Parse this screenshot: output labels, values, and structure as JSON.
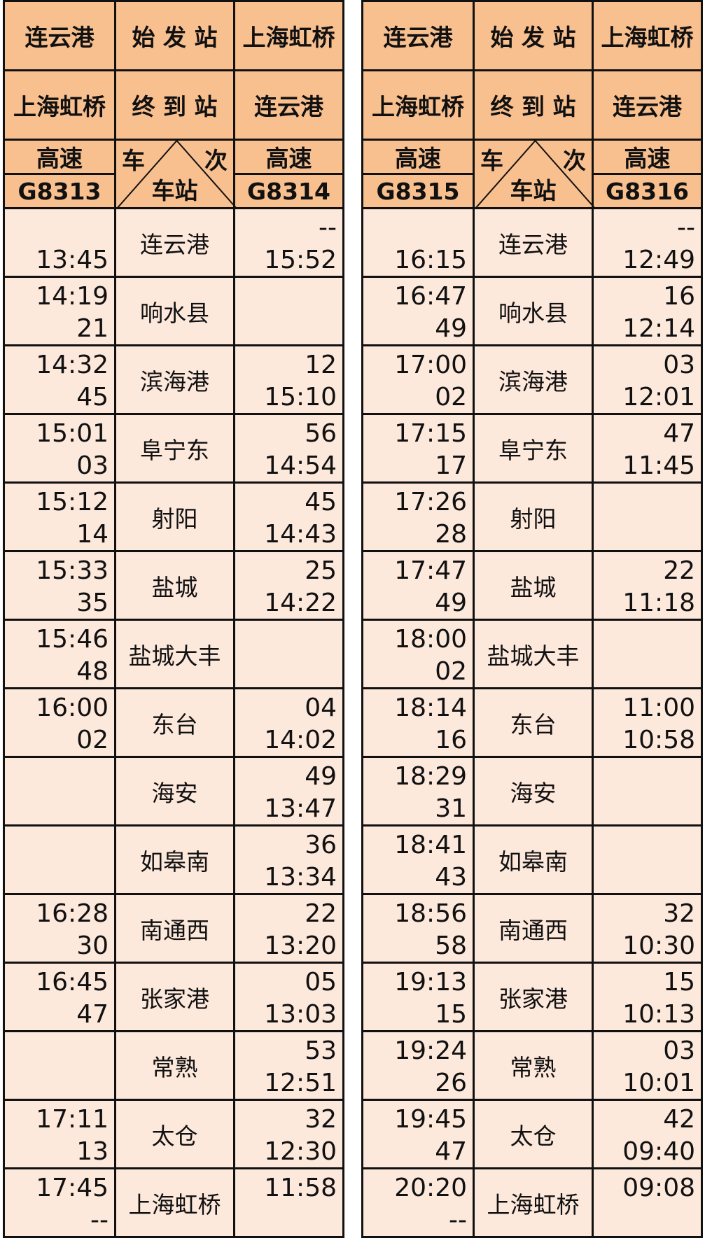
{
  "header": {
    "origin_label": "始 发 站",
    "terminus_label": "终 到 站",
    "diag_train": "车",
    "diag_number": "次",
    "diag_station": "车站"
  },
  "colors": {
    "header_bg": "#F8BF8F",
    "body_bg": "#FDE8DC",
    "border": "#111111"
  },
  "tables": [
    {
      "down": {
        "origin": "连云港",
        "terminus": "上海虹桥",
        "type": "高速",
        "train": "G8313"
      },
      "up": {
        "origin": "上海虹桥",
        "terminus": "连云港",
        "type": "高速",
        "train": "G8314"
      },
      "rows": [
        {
          "station": "连云港",
          "down": [
            "",
            "13:45"
          ],
          "up": [
            "--",
            "15:52"
          ]
        },
        {
          "station": "响水县",
          "down": [
            "14:19",
            "21"
          ],
          "up": [
            "",
            ""
          ]
        },
        {
          "station": "滨海港",
          "down": [
            "14:32",
            "45"
          ],
          "up": [
            "12",
            "15:10"
          ]
        },
        {
          "station": "阜宁东",
          "down": [
            "15:01",
            "03"
          ],
          "up": [
            "56",
            "14:54"
          ]
        },
        {
          "station": "射阳",
          "down": [
            "15:12",
            "14"
          ],
          "up": [
            "45",
            "14:43"
          ]
        },
        {
          "station": "盐城",
          "down": [
            "15:33",
            "35"
          ],
          "up": [
            "25",
            "14:22"
          ]
        },
        {
          "station": "盐城大丰",
          "down": [
            "15:46",
            "48"
          ],
          "up": [
            "",
            ""
          ]
        },
        {
          "station": "东台",
          "down": [
            "16:00",
            "02"
          ],
          "up": [
            "04",
            "14:02"
          ]
        },
        {
          "station": "海安",
          "down": [
            "",
            ""
          ],
          "up": [
            "49",
            "13:47"
          ]
        },
        {
          "station": "如皋南",
          "down": [
            "",
            ""
          ],
          "up": [
            "36",
            "13:34"
          ]
        },
        {
          "station": "南通西",
          "down": [
            "16:28",
            "30"
          ],
          "up": [
            "22",
            "13:20"
          ]
        },
        {
          "station": "张家港",
          "down": [
            "16:45",
            "47"
          ],
          "up": [
            "05",
            "13:03"
          ]
        },
        {
          "station": "常熟",
          "down": [
            "",
            ""
          ],
          "up": [
            "53",
            "12:51"
          ]
        },
        {
          "station": "太仓",
          "down": [
            "17:11",
            "13"
          ],
          "up": [
            "32",
            "12:30"
          ]
        },
        {
          "station": "上海虹桥",
          "down": [
            "17:45",
            "--"
          ],
          "up": [
            "11:58",
            ""
          ]
        }
      ]
    },
    {
      "down": {
        "origin": "连云港",
        "terminus": "上海虹桥",
        "type": "高速",
        "train": "G8315"
      },
      "up": {
        "origin": "上海虹桥",
        "terminus": "连云港",
        "type": "高速",
        "train": "G8316"
      },
      "rows": [
        {
          "station": "连云港",
          "down": [
            "",
            "16:15"
          ],
          "up": [
            "--",
            "12:49"
          ]
        },
        {
          "station": "响水县",
          "down": [
            "16:47",
            "49"
          ],
          "up": [
            "16",
            "12:14"
          ]
        },
        {
          "station": "滨海港",
          "down": [
            "17:00",
            "02"
          ],
          "up": [
            "03",
            "12:01"
          ]
        },
        {
          "station": "阜宁东",
          "down": [
            "17:15",
            "17"
          ],
          "up": [
            "47",
            "11:45"
          ]
        },
        {
          "station": "射阳",
          "down": [
            "17:26",
            "28"
          ],
          "up": [
            "",
            ""
          ]
        },
        {
          "station": "盐城",
          "down": [
            "17:47",
            "49"
          ],
          "up": [
            "22",
            "11:18"
          ]
        },
        {
          "station": "盐城大丰",
          "down": [
            "18:00",
            "02"
          ],
          "up": [
            "",
            ""
          ]
        },
        {
          "station": "东台",
          "down": [
            "18:14",
            "16"
          ],
          "up": [
            "11:00",
            "10:58"
          ]
        },
        {
          "station": "海安",
          "down": [
            "18:29",
            "31"
          ],
          "up": [
            "",
            ""
          ]
        },
        {
          "station": "如皋南",
          "down": [
            "18:41",
            "43"
          ],
          "up": [
            "",
            ""
          ]
        },
        {
          "station": "南通西",
          "down": [
            "18:56",
            "58"
          ],
          "up": [
            "32",
            "10:30"
          ]
        },
        {
          "station": "张家港",
          "down": [
            "19:13",
            "15"
          ],
          "up": [
            "15",
            "10:13"
          ]
        },
        {
          "station": "常熟",
          "down": [
            "19:24",
            "26"
          ],
          "up": [
            "03",
            "10:01"
          ]
        },
        {
          "station": "太仓",
          "down": [
            "19:45",
            "47"
          ],
          "up": [
            "42",
            "09:40"
          ]
        },
        {
          "station": "上海虹桥",
          "down": [
            "20:20",
            "--"
          ],
          "up": [
            "09:08",
            ""
          ]
        }
      ]
    }
  ]
}
